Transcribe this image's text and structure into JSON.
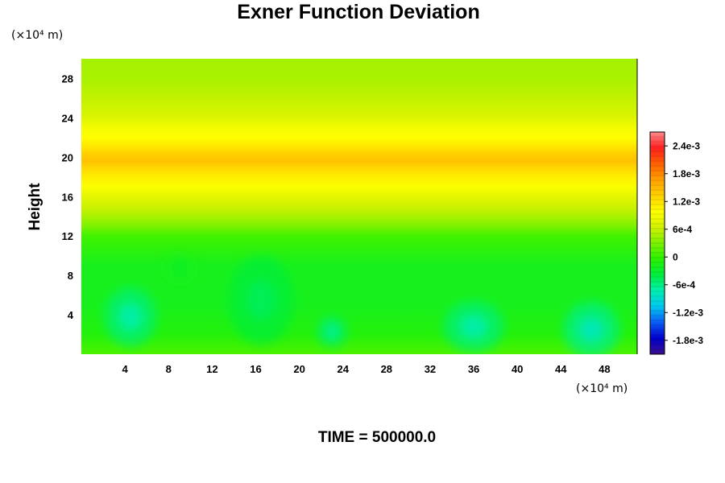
{
  "chart_data": {
    "type": "heatmap",
    "title": "Exner Function Deviation",
    "ylabel": "Height",
    "x_unit": "(×10⁴ m)",
    "y_unit": "(×10⁴ m)",
    "footer": "TIME = 500000.0",
    "xlim": [
      0,
      51
    ],
    "ylim": [
      0,
      30
    ],
    "x_ticks": [
      4,
      8,
      12,
      16,
      20,
      24,
      28,
      32,
      36,
      40,
      44,
      48
    ],
    "y_ticks": [
      4,
      8,
      12,
      16,
      20,
      24,
      28
    ],
    "colorbar": {
      "ticks": [
        {
          "value": 0.0024,
          "label": "2.4e-3"
        },
        {
          "value": 0.0018,
          "label": "1.8e-3"
        },
        {
          "value": 0.0012,
          "label": "1.2e-3"
        },
        {
          "value": 0.0006,
          "label": "6e-4"
        },
        {
          "value": 0,
          "label": "0"
        },
        {
          "value": -0.0006,
          "label": "-6e-4"
        },
        {
          "value": -0.0012,
          "label": "-1.2e-3"
        },
        {
          "value": -0.0018,
          "label": "-1.8e-3"
        }
      ],
      "range": [
        -0.0021,
        0.0027
      ],
      "colors": [
        "#3a0f8c",
        "#0000cc",
        "#0a5cf5",
        "#00c8f0",
        "#00f0b0",
        "#00ee40",
        "#2af200",
        "#7cf200",
        "#d2f200",
        "#ffff00",
        "#ffd000",
        "#ffa000",
        "#ff6000",
        "#ff2020",
        "#ff8c8c"
      ]
    },
    "profile": {
      "heights": [
        0,
        2,
        5,
        9,
        12,
        13,
        14,
        15,
        16,
        17,
        18,
        19,
        19.6,
        20.4,
        21,
        22,
        23,
        24,
        26,
        28,
        30
      ],
      "values": [
        0.0001,
        -0.0001,
        -0.0002,
        -0.0002,
        5e-05,
        0.0003,
        0.00048,
        0.00062,
        0.00078,
        0.00095,
        0.0011,
        0.0013,
        0.00143,
        0.00132,
        0.00118,
        0.001,
        0.0009,
        0.00072,
        0.00058,
        0.00048,
        0.00046
      ]
    },
    "anomalies": [
      {
        "x": 4.5,
        "y": 3.8,
        "rx": 2.4,
        "ry": 3,
        "value": -0.00055
      },
      {
        "x": 16.5,
        "y": 5.5,
        "rx": 3,
        "ry": 4.5,
        "value": -0.00035
      },
      {
        "x": 23,
        "y": 2.3,
        "rx": 1.4,
        "ry": 1.6,
        "value": -0.0005
      },
      {
        "x": 36,
        "y": 2.8,
        "rx": 2.8,
        "ry": 2.6,
        "value": -0.00055
      },
      {
        "x": 46.8,
        "y": 2.5,
        "rx": 2.6,
        "ry": 2.8,
        "value": -0.0006
      },
      {
        "x": 9,
        "y": 8.7,
        "rx": 1.5,
        "ry": 1.5,
        "value": -0.0002
      }
    ]
  }
}
